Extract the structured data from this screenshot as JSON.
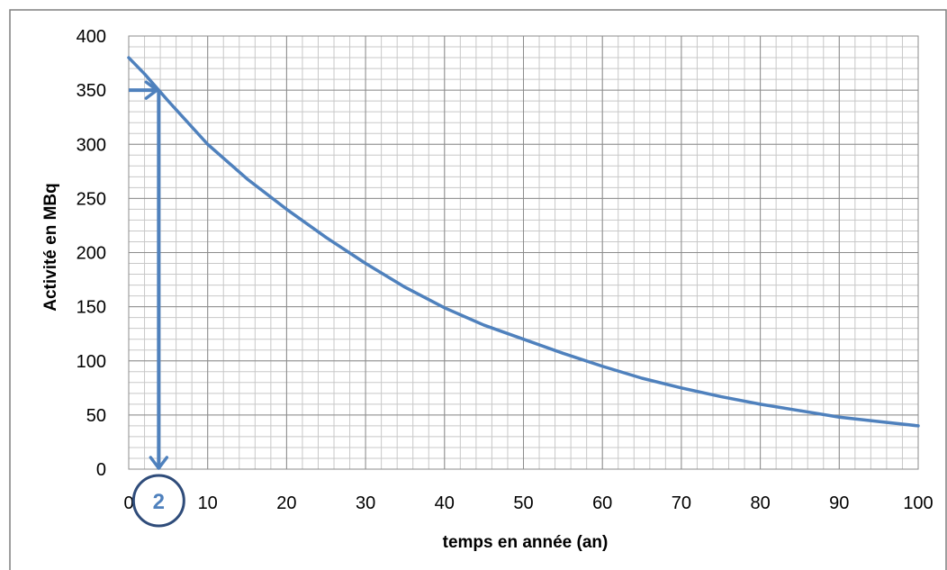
{
  "colors": {
    "curve": "#4F81BD",
    "annotation": "#4F81BD",
    "circle": "#2F4C7A",
    "grid_minor": "#C8C8C8",
    "grid_major": "#8C8C8C",
    "frame": "#7F7F7F"
  },
  "chart_data": {
    "type": "line",
    "xlabel": "temps en année (an)",
    "ylabel": "Activité en MBq",
    "xlim": [
      0,
      100
    ],
    "ylim": [
      0,
      400
    ],
    "x_ticks": [
      "0",
      "10",
      "20",
      "30",
      "40",
      "50",
      "60",
      "70",
      "80",
      "90",
      "100"
    ],
    "y_ticks": [
      "0",
      "50",
      "100",
      "150",
      "200",
      "250",
      "300",
      "350",
      "400"
    ],
    "grid": true,
    "legend": "none",
    "series": [
      {
        "x": [
          0,
          2,
          5,
          10,
          15,
          20,
          25,
          30,
          35,
          40,
          45,
          50,
          55,
          60,
          65,
          70,
          75,
          80,
          85,
          90,
          95,
          100
        ],
        "values": [
          380,
          365,
          340,
          300,
          268,
          240,
          214,
          190,
          168,
          149,
          133,
          120,
          107,
          95,
          84,
          75,
          67,
          60,
          54,
          48,
          44,
          40
        ]
      }
    ],
    "annotations": [
      {
        "type": "reading-arrow",
        "x": 3.8,
        "y": 350,
        "label": "2"
      }
    ]
  }
}
